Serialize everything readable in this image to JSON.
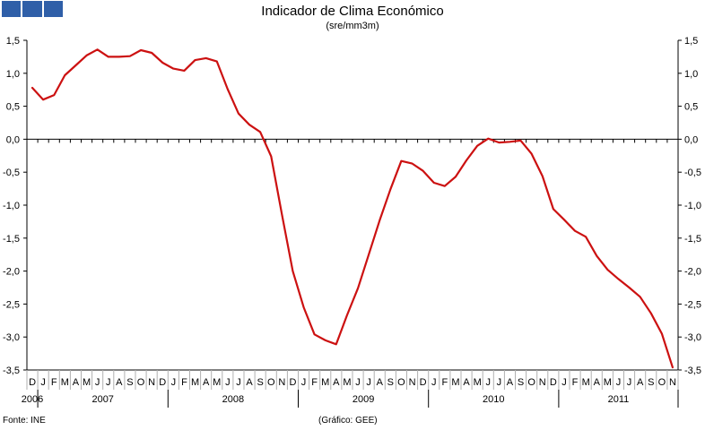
{
  "header": {
    "title": "Indicador de Clima Económico",
    "subtitle": "(sre/mm3m)"
  },
  "footer": {
    "source": "Fonte: INE",
    "credit": "(Gráfico: GEE)"
  },
  "colors": {
    "series": "#cc1111",
    "logo": "#2f5fa8",
    "axis": "#000000"
  },
  "chart_data": {
    "type": "line",
    "title": "Indicador de Clima Económico",
    "subtitle": "(sre/mm3m)",
    "ylim": [
      -3.5,
      1.5
    ],
    "yticks": [
      "1,5",
      "1,0",
      "0,5",
      "0,0",
      "-0,5",
      "-1,0",
      "-1,5",
      "-2,0",
      "-2,5",
      "-3,0",
      "-3,5"
    ],
    "month_labels": [
      "D",
      "J",
      "F",
      "M",
      "A",
      "M",
      "J",
      "J",
      "A",
      "S",
      "O",
      "N",
      "D",
      "J",
      "F",
      "M",
      "A",
      "M",
      "J",
      "J",
      "A",
      "S",
      "O",
      "N",
      "D",
      "J",
      "F",
      "M",
      "A",
      "M",
      "J",
      "J",
      "A",
      "S",
      "O",
      "N",
      "D",
      "J",
      "F",
      "M",
      "A",
      "M",
      "J",
      "J",
      "A",
      "S",
      "O",
      "N",
      "D",
      "J",
      "F",
      "M",
      "A",
      "M",
      "J",
      "J",
      "A",
      "S",
      "O",
      "N"
    ],
    "years": [
      {
        "label": "2006",
        "start": 0,
        "end": 1
      },
      {
        "label": "2007",
        "start": 1,
        "end": 13
      },
      {
        "label": "2008",
        "start": 13,
        "end": 25
      },
      {
        "label": "2009",
        "start": 25,
        "end": 37
      },
      {
        "label": "2010",
        "start": 37,
        "end": 49
      },
      {
        "label": "2011",
        "start": 49,
        "end": 60
      }
    ],
    "zero_line": true,
    "series": [
      {
        "values": [
          0.78,
          0.6,
          0.67,
          0.97,
          1.12,
          1.27,
          1.36,
          1.25,
          1.25,
          1.26,
          1.35,
          1.31,
          1.16,
          1.07,
          1.04,
          1.2,
          1.23,
          1.18,
          0.76,
          0.39,
          0.22,
          0.11,
          -0.26,
          -1.14,
          -2.0,
          -2.55,
          -2.96,
          -3.05,
          -3.11,
          -2.67,
          -2.26,
          -1.75,
          -1.23,
          -0.76,
          -0.33,
          -0.37,
          -0.48,
          -0.66,
          -0.71,
          -0.57,
          -0.32,
          -0.1,
          0.01,
          -0.05,
          -0.04,
          -0.02,
          -0.22,
          -0.56,
          -1.06,
          -1.22,
          -1.39,
          -1.48,
          -1.77,
          -1.98,
          -2.12,
          -2.25,
          -2.39,
          -2.64,
          -2.95,
          -3.46
        ]
      }
    ]
  }
}
